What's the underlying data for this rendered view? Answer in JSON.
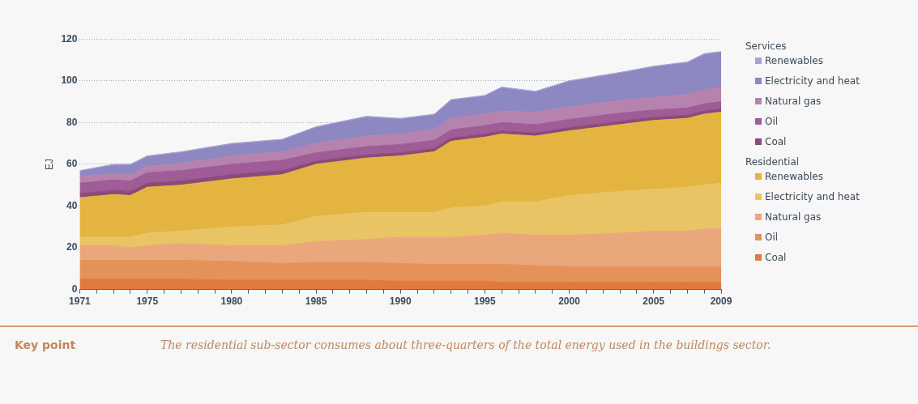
{
  "chart_data": {
    "type": "area",
    "stacked": true,
    "ylabel": "EJ",
    "x": [
      1971,
      1973,
      1974,
      1975,
      1977,
      1980,
      1983,
      1985,
      1988,
      1990,
      1992,
      1993,
      1995,
      1996,
      1998,
      2000,
      2003,
      2005,
      2007,
      2008,
      2009
    ],
    "series": [
      {
        "name": "Coal",
        "color": "#e07a3c",
        "values": [
          5,
          5,
          5,
          5,
          5,
          4.5,
          4.5,
          4.5,
          4.5,
          4,
          4,
          4,
          4,
          3.5,
          3.5,
          3.5,
          3.5,
          3.5,
          3.5,
          3.5,
          3.5
        ]
      },
      {
        "name": "Oil",
        "color": "#e4925a",
        "values": [
          9,
          9,
          9,
          9,
          9,
          9,
          8,
          8.5,
          8.5,
          8.5,
          8,
          8,
          8,
          8.5,
          8,
          7.5,
          7.5,
          7.5,
          7.5,
          7.5,
          7.5
        ]
      },
      {
        "name": "Natural gas",
        "color": "#eaa77c",
        "values": [
          7,
          7,
          6,
          7,
          8,
          7.5,
          8.5,
          10,
          11,
          12.5,
          13,
          13,
          14,
          15,
          14.5,
          15,
          16,
          17,
          17,
          18,
          18
        ]
      },
      {
        "name": "Electricity and heat",
        "color": "#e8c464",
        "values": [
          4,
          4,
          5,
          6,
          6,
          9,
          10,
          12,
          13,
          12,
          12,
          14,
          14,
          15,
          16,
          19,
          20,
          20,
          21,
          21,
          22
        ]
      },
      {
        "name": "Renewables",
        "color": "#e3b43f",
        "values": [
          19,
          20.5,
          20,
          22,
          22,
          23,
          24,
          25,
          26,
          27,
          29,
          32,
          33,
          32.5,
          31.5,
          31,
          32,
          33,
          33,
          34,
          34
        ]
      },
      {
        "name": "Coal",
        "color": "#8a4a7a",
        "values": [
          2,
          2,
          2,
          2,
          2,
          2,
          2,
          1.5,
          1.5,
          1.5,
          1.5,
          1.5,
          1.5,
          1.5,
          1.5,
          1.5,
          1.5,
          1.5,
          1.5,
          1.5,
          1.5
        ]
      },
      {
        "name": "Oil",
        "color": "#a05c97",
        "values": [
          5,
          5,
          5,
          5,
          5,
          5,
          5,
          4,
          4,
          4,
          4,
          4,
          4,
          4,
          4,
          4,
          4,
          3.5,
          3.5,
          3.5,
          3.5
        ]
      },
      {
        "name": "Natural gas",
        "color": "#b683ae",
        "values": [
          3,
          3,
          3,
          3,
          3.5,
          4,
          4,
          4.5,
          5,
          5,
          5,
          5.5,
          5.5,
          5.5,
          6,
          6,
          6,
          6,
          6.5,
          6.5,
          7
        ]
      },
      {
        "name": "Electricity and heat",
        "color": "#8d87c2",
        "values": [
          2.5,
          4,
          4.5,
          4.5,
          5,
          5.5,
          5.5,
          7.5,
          9,
          7,
          7,
          8.5,
          8.5,
          11,
          9.5,
          12,
          13,
          14.5,
          15,
          17,
          16.5
        ]
      },
      {
        "name": "Renewables",
        "color": "#a9a3d0",
        "values": [
          0.5,
          0.5,
          0.5,
          0.5,
          0.5,
          0.5,
          0.5,
          0.5,
          0.5,
          0.5,
          0.5,
          0.5,
          0.5,
          0.5,
          0.5,
          0.5,
          0.5,
          0.5,
          0.5,
          0.5,
          0.5
        ]
      }
    ],
    "xlim": [
      1971,
      2009
    ],
    "xticks": [
      1971,
      {
        "value": 1972,
        "label": null
      },
      {
        "value": 1973,
        "label": null
      },
      {
        "value": 1974,
        "label": null
      },
      1975,
      {
        "value": 1976,
        "label": null
      },
      {
        "value": 1977,
        "label": null
      },
      {
        "value": 1978,
        "label": null
      },
      {
        "value": 1979,
        "label": null
      },
      1980,
      {
        "value": 1981,
        "label": null
      },
      {
        "value": 1982,
        "label": null
      },
      {
        "value": 1983,
        "label": null
      },
      {
        "value": 1984,
        "label": null
      },
      1985,
      {
        "value": 1986,
        "label": null
      },
      {
        "value": 1987,
        "label": null
      },
      {
        "value": 1988,
        "label": null
      },
      {
        "value": 1989,
        "label": null
      },
      1990,
      {
        "value": 1991,
        "label": null
      },
      {
        "value": 1992,
        "label": null
      },
      {
        "value": 1993,
        "label": null
      },
      {
        "value": 1994,
        "label": null
      },
      1995,
      {
        "value": 1996,
        "label": null
      },
      {
        "value": 1997,
        "label": null
      },
      {
        "value": 1998,
        "label": null
      },
      {
        "value": 1999,
        "label": null
      },
      2000,
      {
        "value": 2001,
        "label": null
      },
      {
        "value": 2002,
        "label": null
      },
      {
        "value": 2003,
        "label": null
      },
      {
        "value": 2004,
        "label": null
      },
      2005,
      {
        "value": 2006,
        "label": null
      },
      {
        "value": 2007,
        "label": null
      },
      {
        "value": 2008,
        "label": null
      },
      2009
    ],
    "ylim": [
      0,
      120
    ],
    "yticks": [
      0,
      20,
      40,
      60,
      80,
      100,
      120
    ],
    "grid": "y",
    "legend": "right",
    "line_style": "dotted",
    "annotations": [
      "Services",
      "Residential",
      "Key point",
      "The residential sub-sector consumes about three-quarters of the total energy used in the buildings sector."
    ]
  }
}
